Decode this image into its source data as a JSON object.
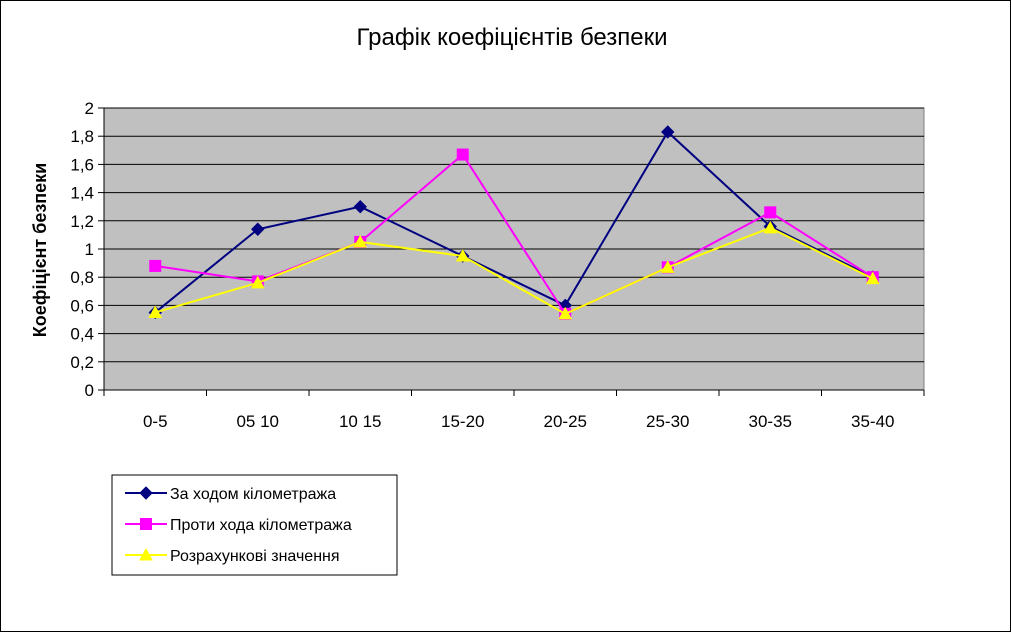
{
  "chart_data": {
    "type": "line",
    "title": "Графік коефіцієнтів безпеки",
    "xlabel": "",
    "ylabel": "Коефіцієнт безпеки",
    "categories": [
      "0-5",
      "05 10",
      "10 15",
      "15-20",
      "20-25",
      "25-30",
      "30-35",
      "35-40"
    ],
    "ylim": [
      0,
      2
    ],
    "yticks": [
      0,
      0.2,
      0.4,
      0.6,
      0.8,
      1,
      1.2,
      1.4,
      1.6,
      1.8,
      2
    ],
    "ytick_labels": [
      "0",
      "0,2",
      "0,4",
      "0,6",
      "0,8",
      "1",
      "1,2",
      "1,4",
      "1,6",
      "1,8",
      "2"
    ],
    "grid": true,
    "plot_background": "#c0c0c0",
    "legend_position": "bottom-left",
    "series": [
      {
        "name": "За ходом кілометража",
        "color": "#000080",
        "marker": "diamond",
        "values": [
          0.55,
          1.14,
          1.3,
          0.95,
          0.6,
          1.83,
          1.16,
          0.8
        ]
      },
      {
        "name": "Проти хода кілометража",
        "color": "#ff00ff",
        "marker": "square",
        "values": [
          0.88,
          0.77,
          1.05,
          1.67,
          0.54,
          0.87,
          1.26,
          0.8
        ]
      },
      {
        "name": "Розрахункові значення",
        "color": "#ffff00",
        "marker": "triangle",
        "values": [
          0.55,
          0.76,
          1.05,
          0.95,
          0.54,
          0.87,
          1.15,
          0.79
        ]
      }
    ]
  }
}
